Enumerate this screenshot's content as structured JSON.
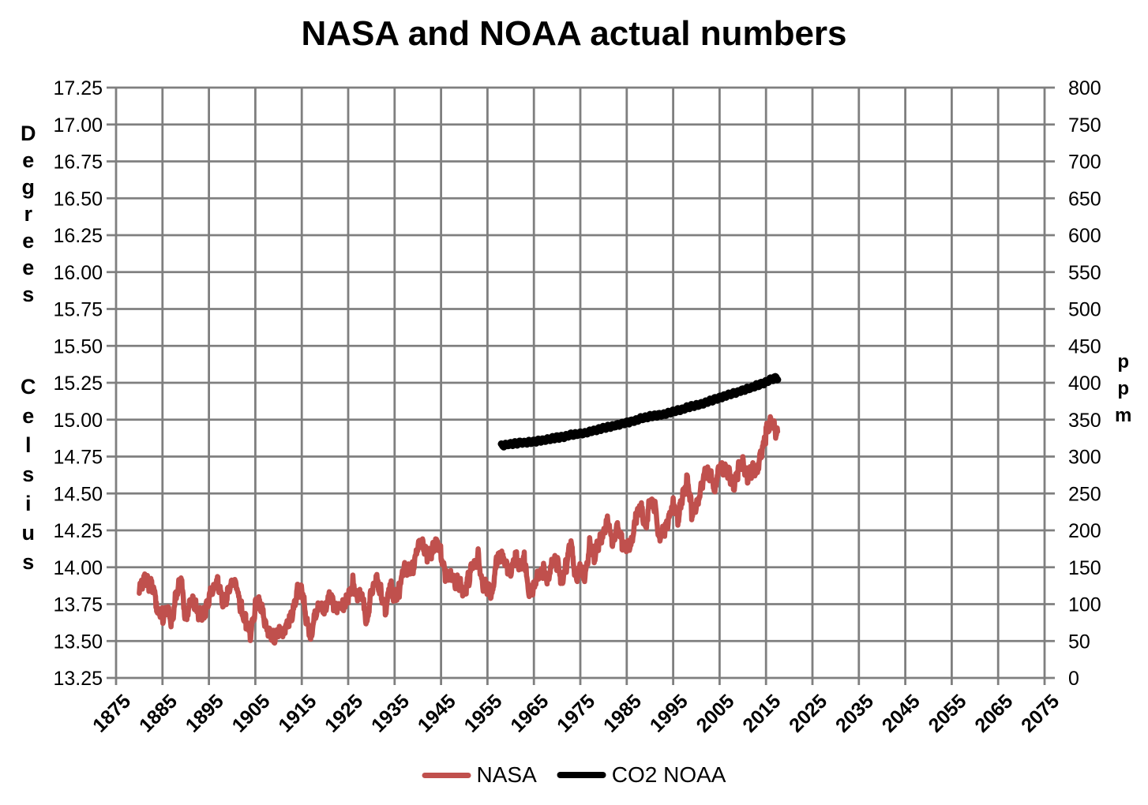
{
  "page": {
    "background": "#ffffff"
  },
  "chart_data": {
    "type": "line",
    "title": "NASA and NOAA actual numbers",
    "grid": true,
    "grid_color": "#7f7f7f",
    "legend_position": "bottom",
    "x_axis": {
      "min": 1875,
      "max": 2075,
      "tick_step": 10,
      "tick_labels": [
        "1875",
        "1885",
        "1895",
        "1905",
        "1915",
        "1925",
        "1935",
        "1945",
        "1955",
        "1965",
        "1975",
        "1985",
        "1995",
        "2005",
        "2015",
        "2025",
        "2035",
        "2045",
        "2055",
        "2065",
        "2075"
      ]
    },
    "y_left": {
      "label": "Degrees Celsius",
      "min": 13.25,
      "max": 17.25,
      "tick_step": 0.25,
      "tick_labels": [
        "17.25",
        "17.00",
        "16.75",
        "16.50",
        "16.25",
        "16.00",
        "15.75",
        "15.50",
        "15.25",
        "15.00",
        "14.75",
        "14.50",
        "14.25",
        "14.00",
        "13.75",
        "13.50",
        "13.25"
      ]
    },
    "y_right": {
      "label": "ppm",
      "min": 0,
      "max": 800,
      "tick_step": 50,
      "tick_labels": [
        "800",
        "750",
        "700",
        "650",
        "600",
        "550",
        "500",
        "450",
        "400",
        "350",
        "300",
        "250",
        "200",
        "150",
        "100",
        "50",
        "0"
      ]
    },
    "series": [
      {
        "name": "NASA",
        "axis": "left",
        "unit": "Degrees Celsius",
        "color": "#C0504D",
        "line_width": 6.5,
        "start_year": 1880,
        "end_year": 2017,
        "values": [
          13.84,
          13.93,
          13.9,
          13.84,
          13.72,
          13.67,
          13.69,
          13.64,
          13.83,
          13.9,
          13.65,
          13.78,
          13.73,
          13.69,
          13.68,
          13.77,
          13.89,
          13.89,
          13.73,
          13.83,
          13.92,
          13.85,
          13.72,
          13.63,
          13.53,
          13.74,
          13.78,
          13.61,
          13.57,
          13.52,
          13.56,
          13.56,
          13.63,
          13.66,
          13.85,
          13.86,
          13.64,
          13.54,
          13.7,
          13.73,
          13.73,
          13.81,
          13.72,
          13.74,
          13.73,
          13.78,
          13.9,
          13.79,
          13.8,
          13.64,
          13.84,
          13.91,
          13.84,
          13.71,
          13.87,
          13.8,
          13.85,
          13.97,
          14.0,
          13.98,
          14.13,
          14.18,
          14.07,
          14.09,
          14.2,
          14.09,
          13.93,
          13.97,
          13.89,
          13.89,
          13.83,
          13.93,
          14.01,
          14.08,
          13.87,
          13.86,
          13.81,
          14.05,
          14.06,
          14.03,
          13.97,
          14.06,
          14.03,
          14.05,
          13.8,
          13.89,
          13.94,
          13.98,
          13.92,
          14.05,
          14.02,
          13.92,
          14.01,
          14.16,
          13.93,
          13.99,
          13.9,
          14.18,
          14.07,
          14.16,
          14.26,
          14.32,
          14.14,
          14.31,
          14.16,
          14.12,
          14.18,
          14.33,
          14.41,
          14.27,
          14.45,
          14.41,
          14.22,
          14.23,
          14.32,
          14.45,
          14.33,
          14.46,
          14.61,
          14.38,
          14.39,
          14.54,
          14.63,
          14.62,
          14.53,
          14.68,
          14.64,
          14.66,
          14.54,
          14.66,
          14.72,
          14.61,
          14.65,
          14.68,
          14.75,
          14.9,
          15.02,
          14.92
        ]
      },
      {
        "name": "CO2 NOAA",
        "axis": "right",
        "unit": "ppm",
        "color": "#000000",
        "line_width": 9,
        "start_year": 1958,
        "end_year": 2017,
        "values": [
          315.34,
          315.97,
          316.91,
          317.64,
          318.45,
          318.99,
          319.62,
          320.04,
          321.38,
          322.16,
          323.04,
          324.62,
          325.68,
          326.32,
          327.45,
          329.68,
          330.18,
          331.08,
          332.05,
          333.78,
          335.41,
          336.78,
          338.68,
          340.1,
          341.44,
          343.03,
          344.58,
          346.04,
          347.39,
          349.16,
          351.56,
          353.07,
          354.35,
          355.57,
          356.38,
          357.07,
          358.82,
          360.8,
          362.59,
          363.71,
          366.65,
          368.33,
          369.47,
          371.03,
          373.22,
          375.77,
          377.49,
          379.78,
          381.9,
          383.76,
          385.59,
          387.37,
          389.85,
          391.63,
          393.82,
          396.48,
          398.61,
          400.83,
          404.24,
          406.55
        ]
      }
    ]
  },
  "legend": {
    "items": [
      {
        "label": "NASA",
        "color": "#C0504D"
      },
      {
        "label": "CO2 NOAA",
        "color": "#000000"
      }
    ]
  }
}
